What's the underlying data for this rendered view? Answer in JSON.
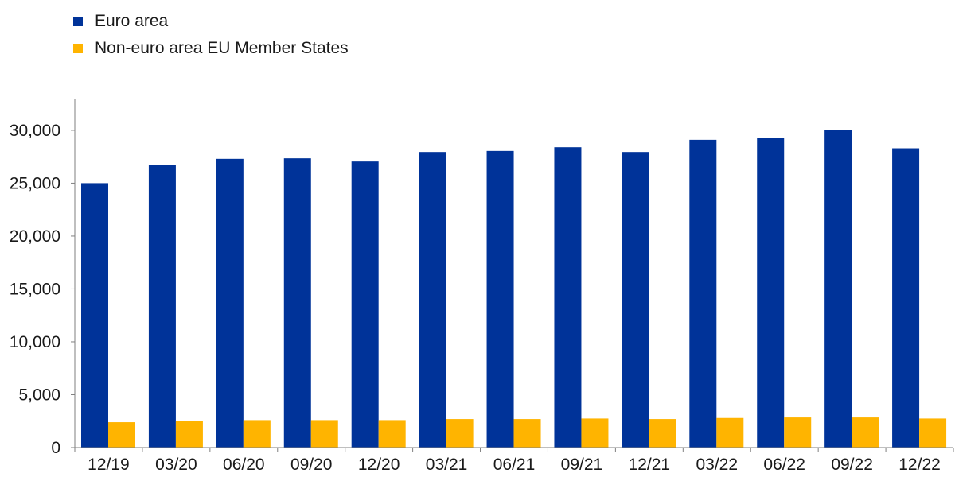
{
  "colors": {
    "euro_area": "#003399",
    "non_euro": "#ffb400",
    "axis": "#7f7f7f"
  },
  "legend": [
    {
      "label": "Euro area",
      "color": "#003399"
    },
    {
      "label": "Non-euro area EU Member States",
      "color": "#ffb400"
    }
  ],
  "chart_data": {
    "type": "bar",
    "title": "",
    "xlabel": "",
    "ylabel": "",
    "categories": [
      "12/19",
      "03/20",
      "06/20",
      "09/20",
      "12/20",
      "03/21",
      "06/21",
      "09/21",
      "12/21",
      "03/22",
      "06/22",
      "09/22",
      "12/22"
    ],
    "series": [
      {
        "name": "Euro area",
        "color": "#003399",
        "values": [
          25000,
          26700,
          27300,
          27350,
          27050,
          27950,
          28050,
          28400,
          27950,
          29100,
          29250,
          30000,
          28300
        ]
      },
      {
        "name": "Non-euro area EU Member States",
        "color": "#ffb400",
        "values": [
          2400,
          2500,
          2600,
          2600,
          2600,
          2700,
          2700,
          2750,
          2700,
          2800,
          2850,
          2850,
          2750
        ]
      }
    ],
    "ylim": [
      0,
      33000
    ],
    "yticks": [
      0,
      5000,
      10000,
      15000,
      20000,
      25000,
      30000
    ],
    "ytick_labels": [
      "0",
      "5,000",
      "10,000",
      "15,000",
      "20,000",
      "25,000",
      "30,000"
    ],
    "grid": false,
    "legend_position": "top-left"
  }
}
